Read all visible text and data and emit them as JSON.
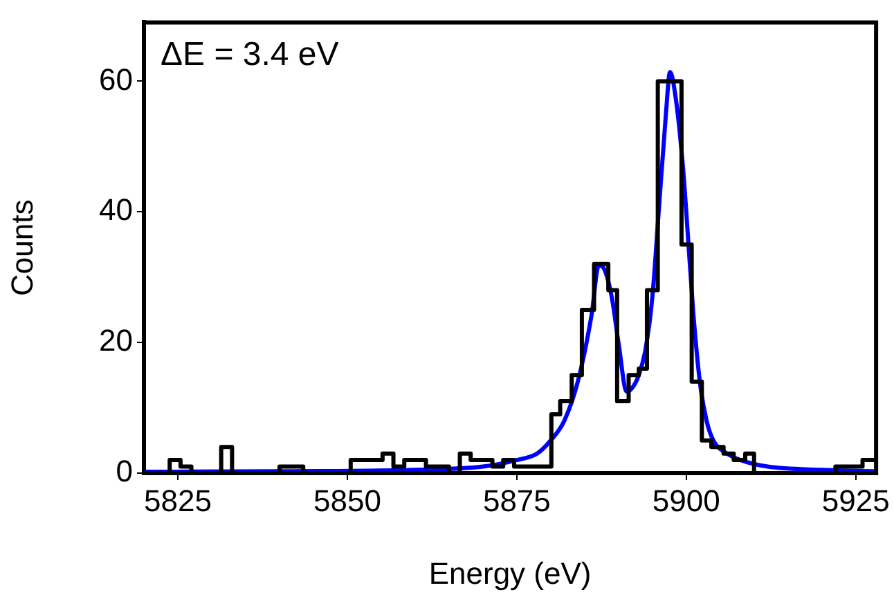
{
  "chart_data": {
    "type": "histogram",
    "xlabel": "Energy (eV)",
    "ylabel": "Counts",
    "annotations": [
      "ΔE = 3.4 eV"
    ],
    "xlim": [
      5820,
      5928
    ],
    "xticks": [
      5825,
      5850,
      5875,
      5900,
      5925
    ],
    "ylim": [
      0,
      69
    ],
    "yticks": [
      0,
      20,
      40,
      60
    ],
    "grid": false,
    "legend": false,
    "color": "#000000",
    "bins": [
      5820,
      5823.8,
      5825.4,
      5827,
      5831.4,
      5833,
      5840,
      5843.5,
      5850.5,
      5853.6,
      5855.2,
      5856.8,
      5858.4,
      5861.6,
      5865,
      5866.6,
      5868.2,
      5869.8,
      5871.4,
      5873,
      5874.6,
      5876.2,
      5877.8,
      5880.1,
      5881.4,
      5883.1,
      5884.6,
      5886.4,
      5888.5,
      5889.8,
      5891.5,
      5893,
      5894.2,
      5895.8,
      5897.9,
      5899.3,
      5900.8,
      5902.3,
      5903.7,
      5905.5,
      5907,
      5908.7,
      5910,
      5922,
      5924,
      5926,
      5928
    ],
    "values": [
      0,
      2,
      1,
      0,
      4,
      0,
      1,
      0,
      2,
      2,
      3,
      1,
      2,
      1,
      0,
      3,
      2,
      2,
      1,
      2,
      1,
      1,
      1,
      9,
      11,
      15,
      25,
      32,
      28,
      11,
      15,
      16,
      28,
      60,
      60,
      35,
      14,
      5,
      4,
      3,
      2,
      3,
      0,
      1,
      1,
      2
    ],
    "series": [
      {
        "type": "line",
        "color": "#0000ff",
        "x": [
          5820,
          5840,
          5860,
          5870,
          5875,
          5878,
          5880,
          5882,
          5884,
          5886,
          5887.1,
          5888,
          5889,
          5890,
          5891.2,
          5892,
          5893,
          5894,
          5895,
          5896,
          5897,
          5897.6,
          5898.5,
          5899.5,
          5900,
          5901,
          5902,
          5903,
          5904,
          5906,
          5908,
          5912,
          5920,
          5928
        ],
        "values": [
          0.2,
          0.3,
          0.5,
          1,
          2,
          3,
          5,
          8,
          14,
          24,
          31.8,
          31,
          27,
          20,
          12.5,
          13,
          15,
          19,
          27,
          41,
          55,
          61.4,
          57,
          47,
          40,
          25,
          14,
          8,
          5,
          3,
          2,
          1,
          0.5,
          0.3
        ]
      }
    ]
  }
}
